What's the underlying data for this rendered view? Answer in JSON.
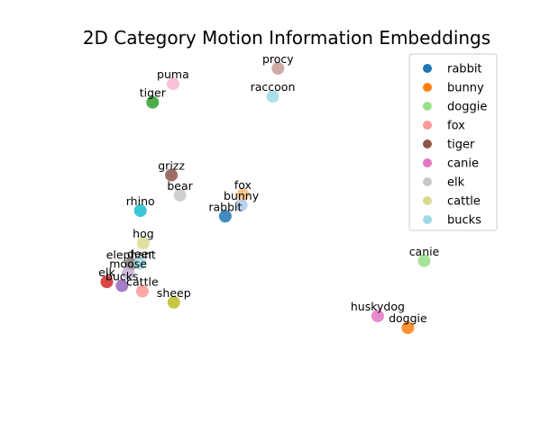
{
  "chart_data": {
    "type": "scatter",
    "title": "2D Category Motion Information Embeddings",
    "xlabel": "",
    "ylabel": "",
    "axes_visible": false,
    "grid": false,
    "xlim": [
      0,
      100
    ],
    "ylim": [
      0,
      100
    ],
    "legend": {
      "placement": "top-right",
      "entries": [
        {
          "name": "rabbit",
          "color": "#1f77b4"
        },
        {
          "name": "bunny",
          "color": "#ff7f0e"
        },
        {
          "name": "doggie",
          "color": "#98df8a"
        },
        {
          "name": "fox",
          "color": "#ff9896"
        },
        {
          "name": "tiger",
          "color": "#8c564b"
        },
        {
          "name": "canie",
          "color": "#e377c2"
        },
        {
          "name": "elk",
          "color": "#c7c7c7"
        },
        {
          "name": "cattle",
          "color": "#dbdb8d"
        },
        {
          "name": "bucks",
          "color": "#9edae5"
        }
      ]
    },
    "points": [
      {
        "label": "procy",
        "x": 48.2,
        "y": 98.0,
        "color": "#c49c94"
      },
      {
        "label": "puma",
        "x": 22.5,
        "y": 93.0,
        "color": "#f7b6d2"
      },
      {
        "label": "raccoon",
        "x": 46.9,
        "y": 88.9,
        "color": "#9edae5"
      },
      {
        "label": "tiger",
        "x": 17.5,
        "y": 87.0,
        "color": "#2ca02c"
      },
      {
        "label": "grizz",
        "x": 22.1,
        "y": 63.5,
        "color": "#8c564b"
      },
      {
        "label": "bear",
        "x": 24.2,
        "y": 57.0,
        "color": "#c7c7c7"
      },
      {
        "label": "fox",
        "x": 39.6,
        "y": 57.2,
        "color": "#ffbb78"
      },
      {
        "label": "bunny",
        "x": 39.2,
        "y": 53.8,
        "color": "#aec7e8"
      },
      {
        "label": "rabbit",
        "x": 35.3,
        "y": 50.2,
        "color": "#1f77b4"
      },
      {
        "label": "rhino",
        "x": 14.5,
        "y": 52.0,
        "color": "#17becf"
      },
      {
        "label": "hog",
        "x": 15.2,
        "y": 41.5,
        "color": "#dbdb8d"
      },
      {
        "label": "elephant",
        "x": 12.2,
        "y": 34.8,
        "color": "#7f7f7f"
      },
      {
        "label": "deer",
        "x": 14.4,
        "y": 35.0,
        "color": "#9edae5"
      },
      {
        "label": "moose",
        "x": 11.5,
        "y": 31.8,
        "color": "#c5b0d5"
      },
      {
        "label": "elk",
        "x": 6.3,
        "y": 29.0,
        "color": "#d62728"
      },
      {
        "label": "bucks",
        "x": 10.0,
        "y": 27.8,
        "color": "#9467bd"
      },
      {
        "label": "cattle",
        "x": 15.0,
        "y": 26.0,
        "color": "#ff9896"
      },
      {
        "label": "sheep",
        "x": 22.7,
        "y": 22.4,
        "color": "#bcbd22"
      },
      {
        "label": "canie",
        "x": 84.0,
        "y": 35.8,
        "color": "#98df8a"
      },
      {
        "label": "huskydog",
        "x": 72.6,
        "y": 18.0,
        "color": "#e377c2"
      },
      {
        "label": "doggie",
        "x": 80.0,
        "y": 14.2,
        "color": "#ff7f0e"
      }
    ]
  }
}
